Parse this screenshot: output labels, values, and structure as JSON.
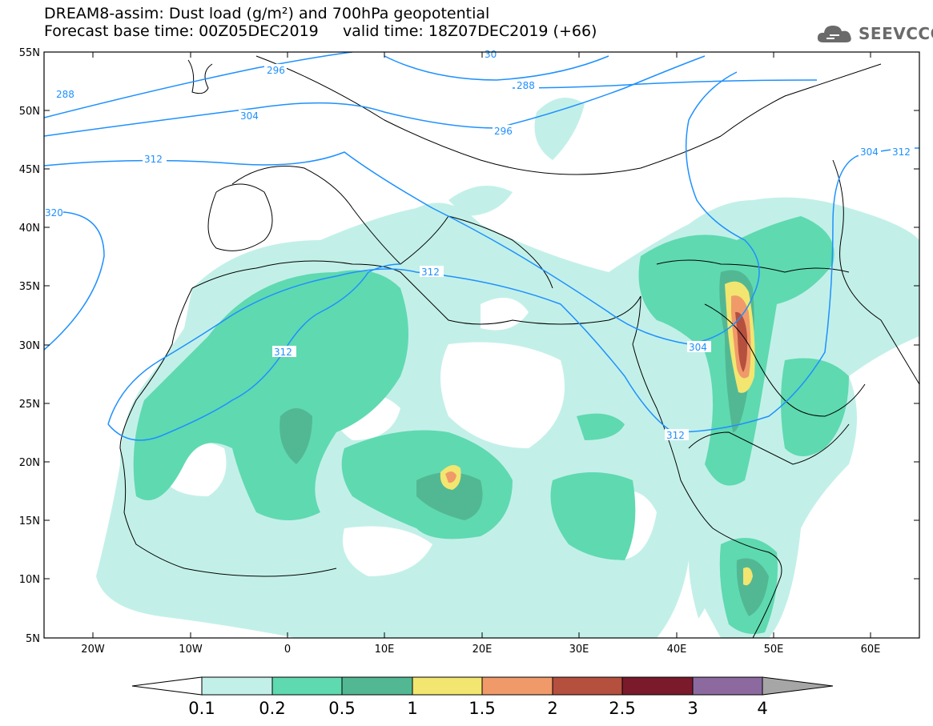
{
  "title_line1": "DREAM8-assim: Dust load (g/m²) and 700hPa geopotential",
  "title_line2": "Forecast base time: 00Z05DEC2019     valid time: 18Z07DEC2019 (+66)",
  "logo_text": "SEEVCCC",
  "lat_labels": [
    "55N",
    "50N",
    "45N",
    "40N",
    "35N",
    "30N",
    "25N",
    "20N",
    "15N",
    "10N",
    "5N"
  ],
  "lon_labels": [
    "20W",
    "10W",
    "0",
    "10E",
    "20E",
    "30E",
    "40E",
    "50E",
    "60E"
  ],
  "contour_labels": [
    "288",
    "296",
    "304",
    "312",
    "320",
    "288",
    "296",
    "304",
    "312",
    "312",
    "304",
    "312",
    "312",
    "30"
  ],
  "colorbar": {
    "ticks": [
      "0.1",
      "0.2",
      "0.5",
      "1",
      "1.5",
      "2",
      "2.5",
      "3",
      "4"
    ],
    "colors": [
      "#c2f0e8",
      "#5fd9b0",
      "#52b893",
      "#f2e670",
      "#f09a6a",
      "#b5503f",
      "#7a1a2b",
      "#8c6aa0"
    ],
    "under_color": "#ffffff",
    "over_color": "#a6a6a6"
  },
  "colors": {
    "contour": "#1e90ff",
    "coast": "#000000",
    "dust_low": "#c2f0e8",
    "dust_mid": "#5fd9b0",
    "dust_high": "#52b893",
    "dust_1": "#f2e670",
    "dust_15": "#f09a6a",
    "dust_2": "#b5503f"
  }
}
